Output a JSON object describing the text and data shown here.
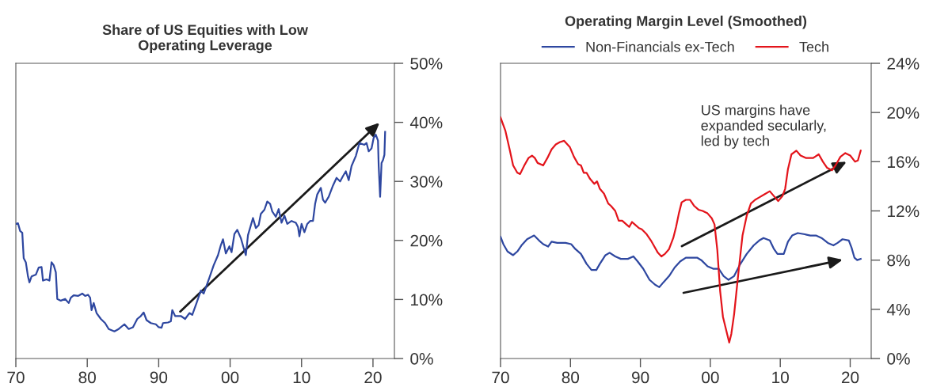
{
  "chart_data": [
    {
      "type": "line",
      "title": "Share of US Equities with Low\nOperating Leverage",
      "xlim": [
        1970,
        2023
      ],
      "ylim": [
        0,
        50
      ],
      "xticks": [
        {
          "value": 1970,
          "label": "70"
        },
        {
          "value": 1980,
          "label": "80"
        },
        {
          "value": 1990,
          "label": "90"
        },
        {
          "value": 2000,
          "label": "00"
        },
        {
          "value": 2010,
          "label": "10"
        },
        {
          "value": 2020,
          "label": "20"
        }
      ],
      "yticks": [
        {
          "value": 0,
          "label": "0%"
        },
        {
          "value": 10,
          "label": "10%"
        },
        {
          "value": 20,
          "label": "20%"
        },
        {
          "value": 30,
          "label": "30%"
        },
        {
          "value": 40,
          "label": "40%"
        },
        {
          "value": 50,
          "label": "50%"
        }
      ],
      "grid": false,
      "legend": false,
      "series": [
        {
          "color": "#2e47a0",
          "x": [
            1970.0,
            1970.3,
            1970.6,
            1970.9,
            1971.1,
            1971.4,
            1971.7,
            1971.9,
            1972.2,
            1972.8,
            1973.2,
            1973.6,
            1973.8,
            1974.3,
            1974.7,
            1975.0,
            1975.3,
            1975.6,
            1975.8,
            1976.3,
            1976.9,
            1977.4,
            1977.7,
            1978.1,
            1978.7,
            1979.3,
            1979.7,
            1980.1,
            1980.4,
            1980.6,
            1980.9,
            1981.3,
            1981.9,
            1982.5,
            1983.0,
            1983.8,
            1984.4,
            1985.2,
            1985.8,
            1986.4,
            1987.0,
            1987.5,
            1987.9,
            1988.3,
            1988.9,
            1989.6,
            1990.0,
            1990.4,
            1990.6,
            1991.3,
            1991.7,
            1991.9,
            1992.3,
            1993.1,
            1993.7,
            1994.3,
            1994.7,
            1995.3,
            1995.9,
            1996.3,
            1997.1,
            1997.7,
            1998.3,
            1998.7,
            1999.0,
            1999.4,
            1999.9,
            2000.2,
            2000.6,
            2001.0,
            2001.5,
            2001.9,
            2002.2,
            2002.5,
            2003.2,
            2003.6,
            2004.0,
            2004.3,
            2004.8,
            2005.2,
            2005.6,
            2005.9,
            2006.4,
            2006.8,
            2007.2,
            2007.6,
            2008.0,
            2008.6,
            2009.2,
            2009.5,
            2009.7,
            2010.0,
            2010.4,
            2010.8,
            2011.2,
            2011.6,
            2011.9,
            2012.2,
            2012.7,
            2013.0,
            2013.3,
            2013.8,
            2014.4,
            2014.9,
            2015.4,
            2015.8,
            2016.2,
            2016.6,
            2017.0,
            2017.6,
            2018.1,
            2018.8,
            2019.1,
            2019.4,
            2019.8,
            2020.1,
            2020.4,
            2020.7,
            2020.8,
            2021.0,
            2021.2,
            2021.4,
            2021.6,
            2021.7
          ],
          "values": [
            22.8,
            22.9,
            21.6,
            21.3,
            17.0,
            16.3,
            13.9,
            12.9,
            13.9,
            14.2,
            15.4,
            15.5,
            13.2,
            13.4,
            13.2,
            16.3,
            15.8,
            14.6,
            10.1,
            9.8,
            10.1,
            9.4,
            10.3,
            10.7,
            10.6,
            11.0,
            10.6,
            10.8,
            10.3,
            8.2,
            9.4,
            7.7,
            6.7,
            6.0,
            5.0,
            4.6,
            5.0,
            5.8,
            5.0,
            5.3,
            6.7,
            7.2,
            7.8,
            6.5,
            6.0,
            5.8,
            5.3,
            5.2,
            6.0,
            6.1,
            6.3,
            8.2,
            7.2,
            7.2,
            6.7,
            7.7,
            7.4,
            9.4,
            11.5,
            11.0,
            13.7,
            15.8,
            17.5,
            19.2,
            20.2,
            17.8,
            19.0,
            18.0,
            21.1,
            21.8,
            20.4,
            18.7,
            17.5,
            20.9,
            23.8,
            22.1,
            22.6,
            24.5,
            25.2,
            26.6,
            26.2,
            24.9,
            24.0,
            25.3,
            23.0,
            24.2,
            22.8,
            23.3,
            23.0,
            22.3,
            20.7,
            22.8,
            21.4,
            22.8,
            23.3,
            23.3,
            26.2,
            27.8,
            28.9,
            26.9,
            26.4,
            27.4,
            29.3,
            30.6,
            30.0,
            30.9,
            31.7,
            30.2,
            32.6,
            34.3,
            36.5,
            36.2,
            36.5,
            35.1,
            35.6,
            37.4,
            37.9,
            36.9,
            32.6,
            27.4,
            33.1,
            33.6,
            34.5,
            38.4
          ]
        }
      ]
    },
    {
      "type": "line",
      "title": "Operating Margin Level (Smoothed)",
      "xlim": [
        1970,
        2023
      ],
      "ylim": [
        0,
        24
      ],
      "xticks": [
        {
          "value": 1970,
          "label": "70"
        },
        {
          "value": 1980,
          "label": "80"
        },
        {
          "value": 1990,
          "label": "90"
        },
        {
          "value": 2000,
          "label": "00"
        },
        {
          "value": 2010,
          "label": "10"
        },
        {
          "value": 2020,
          "label": "20"
        }
      ],
      "yticks": [
        {
          "value": 0,
          "label": "0%"
        },
        {
          "value": 4,
          "label": "4%"
        },
        {
          "value": 8,
          "label": "8%"
        },
        {
          "value": 12,
          "label": "12%"
        },
        {
          "value": 16,
          "label": "16%"
        },
        {
          "value": 20,
          "label": "20%"
        },
        {
          "value": 24,
          "label": "24%"
        }
      ],
      "grid": false,
      "legend": "top",
      "annotations": [
        "US margins have\nexpanded secularly,\nled by tech"
      ],
      "series": [
        {
          "name": "Non-Financials ex-Tech",
          "color": "#2e47a0",
          "x": [
            1970.0,
            1970.4,
            1971.0,
            1971.8,
            1972.4,
            1973.0,
            1973.8,
            1974.8,
            1975.5,
            1976.1,
            1976.8,
            1977.3,
            1978.1,
            1979.3,
            1980.1,
            1980.7,
            1981.5,
            1982.3,
            1983.0,
            1983.7,
            1984.2,
            1985.0,
            1985.6,
            1986.4,
            1987.2,
            1988.2,
            1989.0,
            1989.6,
            1990.4,
            1991.3,
            1992.1,
            1992.7,
            1993.3,
            1994.1,
            1994.9,
            1995.7,
            1996.5,
            1997.3,
            1998.1,
            1998.7,
            1999.6,
            2000.4,
            2001.2,
            2001.9,
            2002.6,
            2003.4,
            2004.2,
            2005.2,
            2006.2,
            2007.0,
            2007.6,
            2008.5,
            2009.1,
            2009.6,
            2010.5,
            2011.1,
            2011.7,
            2012.5,
            2013.5,
            2014.3,
            2015.1,
            2015.9,
            2016.8,
            2017.6,
            2018.2,
            2018.9,
            2019.8,
            2020.2,
            2020.6,
            2021.0,
            2021.5
          ],
          "values": [
            9.9,
            9.3,
            8.7,
            8.4,
            8.7,
            9.2,
            9.7,
            10.0,
            9.6,
            9.3,
            9.1,
            9.5,
            9.4,
            9.4,
            9.3,
            8.9,
            8.5,
            7.7,
            7.2,
            7.2,
            7.7,
            8.4,
            8.6,
            8.3,
            8.1,
            8.1,
            8.3,
            7.9,
            7.3,
            6.4,
            6.0,
            5.8,
            6.2,
            6.7,
            7.4,
            7.9,
            8.2,
            8.2,
            8.2,
            8.0,
            7.5,
            7.3,
            7.3,
            6.7,
            6.4,
            6.7,
            7.6,
            8.5,
            9.2,
            9.6,
            9.8,
            9.6,
            8.9,
            8.5,
            8.5,
            9.5,
            10.0,
            10.2,
            10.1,
            10.0,
            10.0,
            9.8,
            9.4,
            9.2,
            9.4,
            9.7,
            9.6,
            9.0,
            8.2,
            8.0,
            8.1
          ]
        },
        {
          "name": "Tech",
          "color": "#e3141b",
          "x": [
            1970.0,
            1970.7,
            1971.3,
            1971.8,
            1972.4,
            1972.8,
            1973.4,
            1974.0,
            1974.5,
            1974.9,
            1975.3,
            1976.1,
            1976.7,
            1977.3,
            1977.9,
            1978.5,
            1979.1,
            1979.9,
            1980.5,
            1981.1,
            1981.5,
            1981.9,
            1982.3,
            1982.8,
            1983.4,
            1983.8,
            1984.2,
            1984.8,
            1985.4,
            1985.8,
            1986.4,
            1986.9,
            1987.4,
            1988.0,
            1988.4,
            1988.8,
            1989.2,
            1989.8,
            1990.2,
            1990.9,
            1991.5,
            1991.9,
            1992.5,
            1993.0,
            1993.5,
            1994.1,
            1994.7,
            1995.1,
            1995.5,
            1995.9,
            1996.5,
            1997.1,
            1997.7,
            1998.3,
            1998.9,
            1999.6,
            2000.2,
            2000.6,
            2001.0,
            2001.4,
            2001.8,
            2002.4,
            2002.7,
            2003.0,
            2003.4,
            2004.0,
            2004.6,
            2005.2,
            2005.8,
            2006.4,
            2007.0,
            2007.6,
            2008.5,
            2009.1,
            2009.7,
            2010.3,
            2010.7,
            2011.1,
            2011.6,
            2012.3,
            2012.9,
            2013.7,
            2014.7,
            2015.5,
            2016.1,
            2016.7,
            2017.4,
            2017.9,
            2018.6,
            2019.3,
            2020.0,
            2020.7,
            2021.1,
            2021.5
          ],
          "values": [
            19.6,
            18.5,
            17.0,
            15.7,
            15.1,
            15.0,
            15.7,
            16.3,
            16.5,
            16.3,
            15.9,
            15.7,
            16.3,
            17.0,
            17.4,
            17.6,
            17.7,
            17.2,
            16.4,
            15.8,
            15.7,
            15.1,
            15.1,
            14.6,
            14.2,
            14.4,
            13.8,
            13.4,
            12.6,
            12.4,
            12.0,
            11.2,
            11.2,
            10.9,
            10.7,
            11.1,
            10.9,
            10.6,
            10.5,
            10.1,
            9.6,
            9.2,
            8.6,
            8.3,
            8.5,
            8.9,
            9.8,
            10.7,
            11.8,
            12.7,
            12.9,
            12.9,
            12.4,
            12.1,
            12.0,
            11.8,
            11.4,
            10.9,
            8.8,
            5.5,
            3.4,
            2.0,
            1.3,
            2.0,
            3.6,
            6.9,
            10.0,
            11.6,
            12.6,
            12.9,
            13.1,
            13.3,
            13.6,
            13.2,
            12.8,
            13.2,
            13.8,
            15.4,
            16.6,
            16.9,
            16.5,
            16.3,
            16.3,
            16.6,
            16.0,
            15.5,
            15.3,
            15.7,
            16.4,
            16.7,
            16.5,
            16.0,
            16.1,
            16.9
          ]
        }
      ]
    }
  ]
}
